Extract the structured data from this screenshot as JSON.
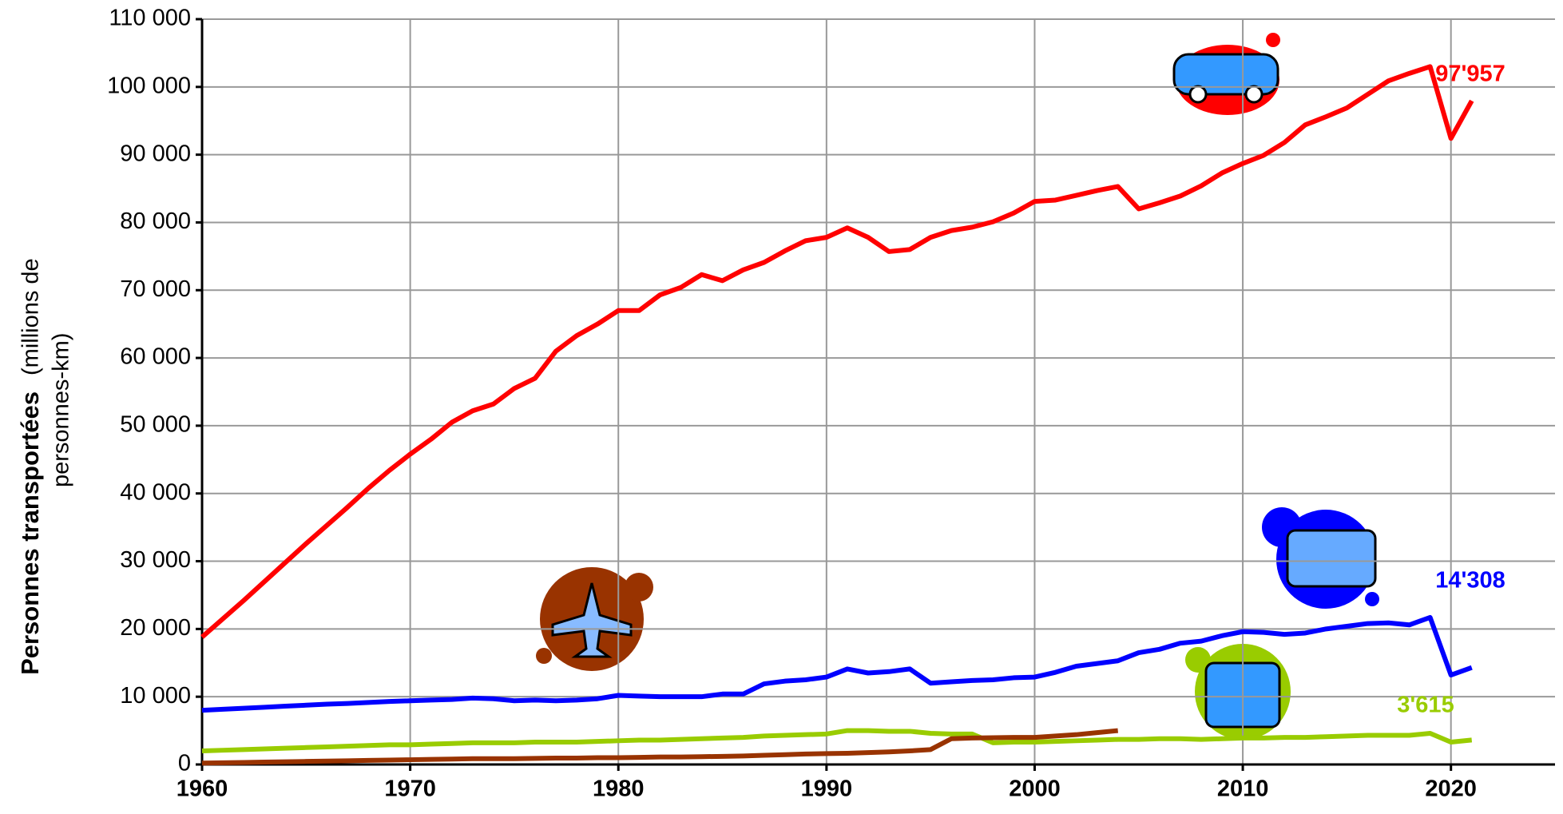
{
  "chart_data": {
    "type": "line",
    "ylabel": "Personnes transportées",
    "ylabel_unit_lines": [
      "(millions de",
      "personnes-km)"
    ],
    "x": [
      1960,
      1961,
      1962,
      1963,
      1964,
      1965,
      1966,
      1967,
      1968,
      1969,
      1970,
      1971,
      1972,
      1973,
      1974,
      1975,
      1976,
      1977,
      1978,
      1979,
      1980,
      1981,
      1982,
      1983,
      1984,
      1985,
      1986,
      1987,
      1988,
      1989,
      1990,
      1991,
      1992,
      1993,
      1994,
      1995,
      1996,
      1997,
      1998,
      1999,
      2000,
      2001,
      2002,
      2003,
      2004,
      2005,
      2006,
      2007,
      2008,
      2009,
      2010,
      2011,
      2012,
      2013,
      2014,
      2015,
      2016,
      2017,
      2018,
      2019,
      2020,
      2021
    ],
    "xlim": [
      1960,
      2025
    ],
    "xticks": [
      1960,
      1970,
      1980,
      1990,
      2000,
      2010,
      2020
    ],
    "ylim": [
      0,
      110000
    ],
    "yticks": [
      0,
      {
        "value": 10000,
        "label": "10 000"
      },
      {
        "value": 20000,
        "label": "20 000"
      },
      {
        "value": 30000,
        "label": "30 000"
      },
      {
        "value": 40000,
        "label": "40 000"
      },
      {
        "value": 50000,
        "label": "50 000"
      },
      {
        "value": 60000,
        "label": "60 000"
      },
      {
        "value": 70000,
        "label": "70 000"
      },
      {
        "value": 80000,
        "label": "80 000"
      },
      {
        "value": 90000,
        "label": "90 000"
      },
      {
        "value": 100000,
        "label": "100 000"
      },
      {
        "value": 110000,
        "label": "110 000"
      }
    ],
    "grid": true,
    "series": [
      {
        "color": "#ff0000",
        "end_label": "97'957",
        "values": [
          18800,
          21500,
          24200,
          27000,
          29800,
          32600,
          35300,
          38000,
          40800,
          43400,
          45800,
          48000,
          50500,
          52200,
          53200,
          55500,
          57000,
          61000,
          63300,
          65000,
          67000,
          67000,
          69300,
          70400,
          72300,
          71400,
          73000,
          74100,
          75800,
          77300,
          77800,
          79200,
          77800,
          75700,
          76000,
          77800,
          78800,
          79300,
          80100,
          81400,
          83100,
          83300,
          84000,
          84700,
          85300,
          82000,
          82900,
          83900,
          85400,
          87300,
          88700,
          89900,
          91800,
          94400,
          95600,
          96900,
          98900,
          100900,
          102000,
          103000,
          92400,
          97957
        ]
      },
      {
        "color": "#0000ff",
        "end_label": "14'308",
        "values": [
          8000,
          8150,
          8300,
          8450,
          8600,
          8750,
          8900,
          9000,
          9150,
          9300,
          9400,
          9500,
          9600,
          9800,
          9700,
          9400,
          9500,
          9400,
          9500,
          9700,
          10200,
          10100,
          10000,
          10000,
          10000,
          10400,
          10400,
          11900,
          12300,
          12500,
          12900,
          14100,
          13500,
          13700,
          14100,
          12000,
          12200,
          12400,
          12500,
          12800,
          12900,
          13600,
          14500,
          14900,
          15300,
          16500,
          17000,
          17900,
          18200,
          19000,
          19600,
          19500,
          19200,
          19400,
          20000,
          20400,
          20800,
          20900,
          20600,
          21700,
          13200,
          14308
        ]
      },
      {
        "color": "#99cc00",
        "end_label": "3'615",
        "values": [
          2000,
          2100,
          2200,
          2300,
          2400,
          2500,
          2600,
          2700,
          2800,
          2900,
          2900,
          3000,
          3100,
          3200,
          3200,
          3200,
          3300,
          3300,
          3300,
          3400,
          3500,
          3600,
          3600,
          3700,
          3800,
          3900,
          4000,
          4200,
          4300,
          4400,
          4500,
          5000,
          5000,
          4900,
          4900,
          4600,
          4500,
          4500,
          3200,
          3300,
          3300,
          3400,
          3500,
          3600,
          3700,
          3700,
          3800,
          3800,
          3700,
          3800,
          3900,
          3900,
          4000,
          4000,
          4100,
          4200,
          4300,
          4300,
          4300,
          4600,
          3300,
          3615
        ]
      },
      {
        "color": "#993300",
        "values": [
          200,
          250,
          300,
          350,
          400,
          450,
          500,
          550,
          600,
          650,
          700,
          750,
          800,
          850,
          850,
          850,
          900,
          950,
          950,
          1000,
          1000,
          1050,
          1100,
          1100,
          1150,
          1200,
          1250,
          1350,
          1450,
          1550,
          1600,
          1650,
          1750,
          1850,
          2000,
          2200,
          3800,
          3900,
          3950,
          4000,
          4000,
          4200,
          4400,
          4700,
          5000,
          null,
          null,
          null,
          null,
          null,
          null,
          null,
          null,
          null,
          null,
          null,
          null,
          null,
          null,
          null,
          null,
          null
        ]
      }
    ]
  }
}
